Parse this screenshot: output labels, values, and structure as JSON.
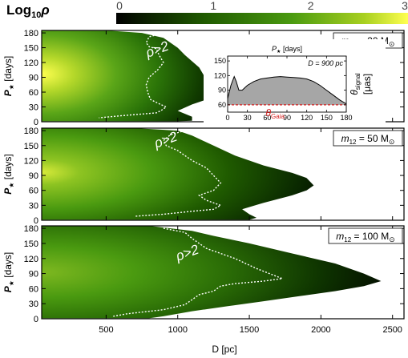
{
  "chart_data": {
    "type": "heatmap",
    "colorbar": {
      "label": "Log",
      "label_sub": "10",
      "label_sym": "ρ",
      "ticks": [
        0,
        1,
        2,
        3
      ],
      "range": [
        0,
        3
      ],
      "colors": [
        "#000000",
        "#1f5a00",
        "#4a9a10",
        "#a8d020",
        "#ffff50"
      ]
    },
    "xaxis": {
      "label": "D [pc]",
      "range": [
        50,
        2580
      ],
      "ticks": [
        500,
        1000,
        1500,
        2000,
        2500
      ]
    },
    "yaxis": {
      "label_main": "P",
      "label_sub": "★",
      "label_unit": " [days]",
      "range": [
        0,
        185
      ],
      "ticks": [
        0,
        30,
        60,
        90,
        120,
        150,
        180
      ]
    },
    "panels": [
      {
        "mass_label_pre": "m",
        "mass_label_sub": "12",
        "mass_label_post": " = 20 M",
        "mass_symbol": "⊙",
        "region_label": "ρ>2",
        "region_label_pos": [
          790,
          130
        ],
        "boundary": [
          [
            50,
            185
          ],
          [
            500,
            185
          ],
          [
            750,
            180
          ],
          [
            900,
            170
          ],
          [
            1000,
            150
          ],
          [
            1050,
            135
          ],
          [
            1150,
            110
          ],
          [
            1200,
            85
          ],
          [
            1240,
            70
          ],
          [
            1240,
            55
          ],
          [
            1200,
            45
          ],
          [
            1100,
            35
          ],
          [
            1000,
            22
          ],
          [
            1100,
            10
          ],
          [
            1100,
            2
          ],
          [
            1000,
            1
          ],
          [
            50,
            1
          ]
        ],
        "rho2_contour": [
          [
            900,
            180
          ],
          [
            800,
            172
          ],
          [
            780,
            160
          ],
          [
            800,
            152
          ],
          [
            850,
            148
          ],
          [
            870,
            135
          ],
          [
            900,
            120
          ],
          [
            860,
            105
          ],
          [
            800,
            90
          ],
          [
            780,
            75
          ],
          [
            790,
            60
          ],
          [
            810,
            45
          ],
          [
            880,
            35
          ],
          [
            920,
            30
          ],
          [
            880,
            22
          ],
          [
            850,
            18
          ],
          [
            600,
            12
          ],
          [
            450,
            8
          ]
        ]
      },
      {
        "mass_label_pre": "m",
        "mass_label_sub": "12",
        "mass_label_post": " = 50 M",
        "mass_symbol": "⊙",
        "region_label": "ρ>2",
        "region_label_pos": [
          850,
          145
        ],
        "boundary": [
          [
            50,
            185
          ],
          [
            700,
            185
          ],
          [
            1000,
            180
          ],
          [
            1100,
            170
          ],
          [
            1250,
            150
          ],
          [
            1400,
            130
          ],
          [
            1600,
            110
          ],
          [
            1800,
            95
          ],
          [
            1900,
            85
          ],
          [
            1950,
            70
          ],
          [
            1900,
            60
          ],
          [
            1800,
            50
          ],
          [
            1600,
            35
          ],
          [
            1450,
            22
          ],
          [
            1500,
            12
          ],
          [
            1550,
            5
          ],
          [
            1500,
            1
          ],
          [
            50,
            1
          ]
        ],
        "rho2_contour": [
          [
            1050,
            180
          ],
          [
            950,
            172
          ],
          [
            900,
            160
          ],
          [
            920,
            150
          ],
          [
            1000,
            140
          ],
          [
            1100,
            120
          ],
          [
            1200,
            105
          ],
          [
            1250,
            90
          ],
          [
            1300,
            75
          ],
          [
            1250,
            60
          ],
          [
            1150,
            50
          ],
          [
            1200,
            40
          ],
          [
            1300,
            30
          ],
          [
            1250,
            22
          ],
          [
            1100,
            18
          ],
          [
            900,
            12
          ],
          [
            700,
            8
          ]
        ]
      },
      {
        "mass_label_pre": "m",
        "mass_label_sub": "12",
        "mass_label_post": " = 100 M",
        "mass_symbol": "⊙",
        "region_label": "ρ>2",
        "region_label_pos": [
          1000,
          115
        ],
        "boundary": [
          [
            50,
            185
          ],
          [
            800,
            185
          ],
          [
            1100,
            175
          ],
          [
            1250,
            165
          ],
          [
            1500,
            150
          ],
          [
            1800,
            130
          ],
          [
            2100,
            110
          ],
          [
            2300,
            90
          ],
          [
            2420,
            75
          ],
          [
            2300,
            65
          ],
          [
            2100,
            55
          ],
          [
            1850,
            45
          ],
          [
            1600,
            35
          ],
          [
            1350,
            25
          ],
          [
            1100,
            15
          ],
          [
            900,
            5
          ],
          [
            800,
            1
          ],
          [
            50,
            1
          ]
        ],
        "rho2_contour": [
          [
            900,
            180
          ],
          [
            1050,
            172
          ],
          [
            1100,
            160
          ],
          [
            1200,
            140
          ],
          [
            1400,
            120
          ],
          [
            1550,
            100
          ],
          [
            1730,
            80
          ],
          [
            1600,
            75
          ],
          [
            1400,
            70
          ],
          [
            1300,
            65
          ],
          [
            1250,
            55
          ],
          [
            1150,
            48
          ],
          [
            1100,
            38
          ],
          [
            1050,
            28
          ],
          [
            900,
            18
          ],
          [
            650,
            10
          ],
          [
            550,
            5
          ]
        ]
      }
    ],
    "inset": {
      "title_main": "P",
      "title_sub": "★",
      "title_unit": " [days]",
      "annotation": "D = 900 pc",
      "threshold_label": "θ",
      "threshold_sub": "Gaia",
      "ylabel_main": "θ",
      "ylabel_sub": "signal",
      "ylabel_unit": "[μas]",
      "xticks": [
        0,
        30,
        60,
        90,
        120,
        150,
        180
      ],
      "yticks": [
        60,
        90,
        120,
        150
      ],
      "xrange": [
        0,
        180
      ],
      "yrange": [
        45,
        160
      ],
      "threshold": 60,
      "curve_x": [
        0,
        5,
        10,
        13,
        17,
        22,
        30,
        40,
        50,
        60,
        70,
        80,
        90,
        100,
        110,
        120,
        130,
        140,
        150,
        160,
        170,
        180
      ],
      "curve_y": [
        73,
        100,
        118,
        108,
        90,
        90,
        100,
        108,
        113,
        115,
        117,
        118,
        117,
        116,
        115,
        113,
        108,
        100,
        90,
        80,
        70,
        62
      ]
    }
  }
}
